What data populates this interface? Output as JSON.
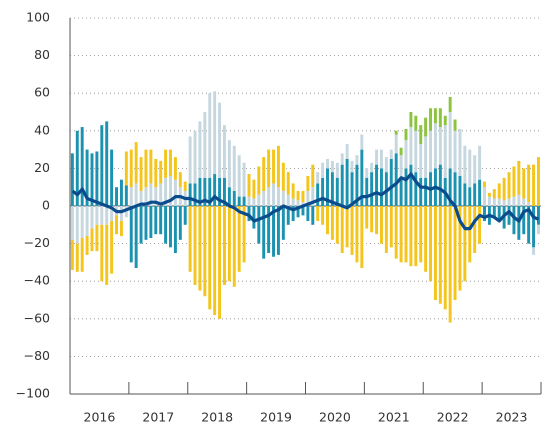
{
  "chart_data": {
    "type": "stacked-bar-line",
    "categories": [
      null,
      null,
      null,
      null,
      null,
      null,
      "2016",
      null,
      null,
      null,
      null,
      null,
      null,
      null,
      null,
      null,
      null,
      null,
      "2017",
      null,
      null,
      null,
      null,
      null,
      null,
      null,
      null,
      null,
      null,
      null,
      "2018",
      null,
      null,
      null,
      null,
      null,
      null,
      null,
      null,
      null,
      null,
      null,
      "2019",
      null,
      null,
      null,
      null,
      null,
      null,
      null,
      null,
      null,
      null,
      null,
      "2020",
      null,
      null,
      null,
      null,
      null,
      null,
      null,
      null,
      null,
      null,
      null,
      "2021",
      null,
      null,
      null,
      null,
      null,
      null,
      null,
      null,
      null,
      null,
      null,
      "2022",
      null,
      null,
      null,
      null,
      null,
      null,
      null,
      null,
      null,
      null,
      null,
      "2023",
      null,
      null,
      null,
      null,
      null
    ],
    "series": [
      {
        "color": "#1b93b0",
        "values": [
          28,
          40,
          42,
          30,
          28,
          29,
          43,
          45,
          30,
          10,
          14,
          11,
          -30,
          -33,
          -20,
          -18,
          -17,
          -15,
          -15,
          -20,
          -22,
          -25,
          -18,
          -10,
          12,
          12,
          15,
          15,
          15,
          17,
          15,
          15,
          10,
          8,
          5,
          5,
          -8,
          -12,
          -20,
          -28,
          -25,
          -27,
          -26,
          -18,
          -10,
          -8,
          -6,
          -5,
          -8,
          -10,
          12,
          15,
          20,
          18,
          15,
          22,
          25,
          18,
          22,
          30,
          15,
          18,
          22,
          20,
          18,
          25,
          28,
          15,
          20,
          22,
          18,
          15,
          15,
          18,
          20,
          22,
          15,
          20,
          18,
          16,
          12,
          10,
          12,
          14,
          -8,
          -10,
          -6,
          -8,
          -12,
          -10,
          -15,
          -18,
          -15,
          -20,
          -22,
          -10
        ]
      },
      {
        "color": "#c6d7e0",
        "values": [
          -18,
          -20,
          -17,
          -16,
          -12,
          -10,
          -10,
          -10,
          -8,
          -5,
          -8,
          -6,
          10,
          12,
          8,
          10,
          12,
          10,
          12,
          15,
          16,
          14,
          10,
          8,
          25,
          28,
          30,
          35,
          45,
          44,
          40,
          28,
          25,
          24,
          22,
          18,
          5,
          4,
          6,
          8,
          10,
          12,
          10,
          8,
          6,
          4,
          3,
          2,
          8,
          10,
          6,
          8,
          5,
          6,
          8,
          6,
          8,
          6,
          5,
          8,
          5,
          5,
          8,
          10,
          8,
          5,
          10,
          12,
          15,
          20,
          22,
          18,
          22,
          22,
          24,
          20,
          28,
          30,
          22,
          25,
          20,
          20,
          15,
          18,
          10,
          5,
          4,
          4,
          3,
          4,
          5,
          6,
          4,
          2,
          -4,
          -5
        ]
      },
      {
        "color": "#f4c51c",
        "values": [
          -16,
          -15,
          -18,
          -10,
          -12,
          -14,
          -30,
          -32,
          -28,
          -10,
          -8,
          18,
          20,
          22,
          18,
          20,
          18,
          15,
          12,
          15,
          14,
          12,
          8,
          5,
          -35,
          -42,
          -45,
          -48,
          -55,
          -58,
          -60,
          -42,
          -40,
          -43,
          -35,
          -30,
          12,
          10,
          15,
          18,
          20,
          18,
          22,
          15,
          12,
          8,
          5,
          6,
          8,
          12,
          -8,
          -10,
          -15,
          -18,
          -20,
          -25,
          -22,
          -26,
          -30,
          -33,
          -12,
          -14,
          -15,
          -20,
          -25,
          -22,
          -28,
          -30,
          -30,
          -32,
          -32,
          -30,
          -35,
          -40,
          -50,
          -52,
          -55,
          -62,
          -50,
          -45,
          -40,
          -30,
          -25,
          -20,
          3,
          2,
          5,
          8,
          12,
          14,
          16,
          18,
          16,
          20,
          22,
          26
        ]
      },
      {
        "color": "#8cc43f",
        "values": [
          0,
          0,
          0,
          0,
          0,
          0,
          0,
          0,
          0,
          0,
          0,
          0,
          0,
          0,
          0,
          0,
          0,
          0,
          0,
          0,
          0,
          0,
          0,
          0,
          0,
          0,
          0,
          0,
          0,
          0,
          0,
          0,
          0,
          0,
          0,
          0,
          0,
          0,
          0,
          0,
          0,
          0,
          0,
          0,
          0,
          0,
          0,
          0,
          0,
          0,
          0,
          0,
          0,
          0,
          0,
          0,
          0,
          0,
          0,
          0,
          0,
          0,
          0,
          0,
          0,
          0,
          2,
          4,
          6,
          8,
          8,
          10,
          10,
          12,
          8,
          10,
          5,
          8,
          6,
          0,
          0,
          0,
          0,
          0,
          0,
          0,
          0,
          0,
          0,
          0,
          0,
          0,
          0,
          0,
          0,
          0
        ]
      }
    ],
    "line": {
      "color": "#0b4c8c",
      "values": [
        8,
        6,
        9,
        4,
        3,
        2,
        1,
        0,
        -1,
        -3,
        -3,
        -2,
        -1,
        0,
        1,
        1,
        2,
        2,
        1,
        2,
        3,
        5,
        5,
        4,
        4,
        3,
        2,
        3,
        2,
        5,
        3,
        2,
        0,
        -1,
        -3,
        -4,
        -5,
        -8,
        -7,
        -6,
        -5,
        -3,
        -2,
        0,
        -1,
        -2,
        -1,
        0,
        1,
        2,
        3,
        4,
        3,
        2,
        1,
        0,
        -1,
        1,
        3,
        5,
        5,
        6,
        7,
        6,
        8,
        10,
        12,
        15,
        14,
        17,
        13,
        10,
        10,
        9,
        10,
        9,
        7,
        3,
        0,
        -8,
        -12,
        -12,
        -8,
        -5,
        -6,
        -5,
        -6,
        -8,
        -5,
        -3,
        -6,
        -8,
        -3,
        -2,
        -6,
        -7
      ]
    },
    "ylim": [
      -100,
      100
    ],
    "yticks": [
      {
        "value": -100,
        "label": "−100"
      },
      {
        "value": -80,
        "label": "−80"
      },
      {
        "value": -60,
        "label": "−60"
      },
      {
        "value": -40,
        "label": "−40"
      },
      {
        "value": -20,
        "label": "−20"
      },
      0,
      20,
      40,
      60,
      80,
      100
    ],
    "grid": true
  }
}
